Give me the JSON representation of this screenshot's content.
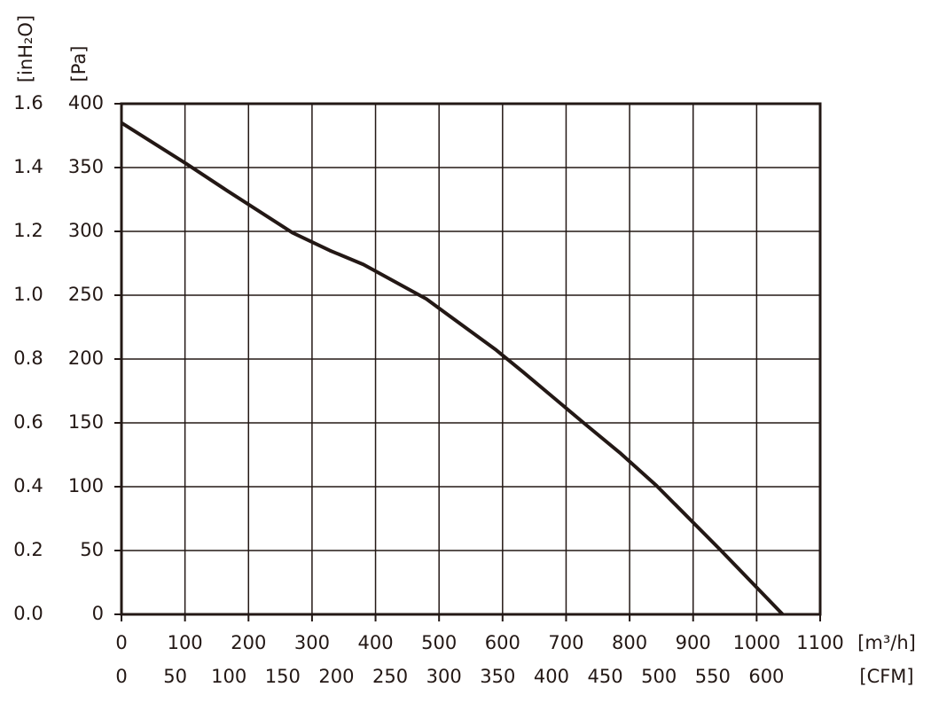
{
  "chart_data": {
    "type": "line",
    "x_label": "[m³/h]",
    "x2_label": "[CFM]",
    "y_label": "[Pa]",
    "y2_label": "[inH₂O]",
    "x": [
      0,
      102,
      166,
      269,
      328,
      381,
      480,
      590,
      632,
      730,
      786,
      842,
      942,
      1041
    ],
    "values": [
      385,
      353,
      332,
      299,
      285,
      274,
      247,
      207,
      190,
      149,
      126,
      101,
      51,
      0
    ],
    "color": "#231815",
    "xlim": [
      0,
      1100
    ],
    "xticks": [
      0,
      100,
      200,
      300,
      400,
      500,
      600,
      700,
      800,
      900,
      1000,
      1100
    ],
    "x2lim": [
      0,
      650
    ],
    "x2ticks": [
      0,
      50,
      100,
      150,
      200,
      250,
      300,
      350,
      400,
      450,
      500,
      550,
      600
    ],
    "ylim": [
      0,
      400
    ],
    "yticks": [
      0,
      50,
      100,
      150,
      200,
      250,
      300,
      350,
      400
    ],
    "y2lim": [
      0,
      1.6
    ],
    "y2ticks": [
      {
        "value": 0,
        "label": "0.0"
      },
      0.2,
      0.4,
      0.6,
      0.8,
      {
        "value": 1,
        "label": "1.0"
      },
      1.2,
      1.4,
      1.6
    ],
    "grid": true
  }
}
